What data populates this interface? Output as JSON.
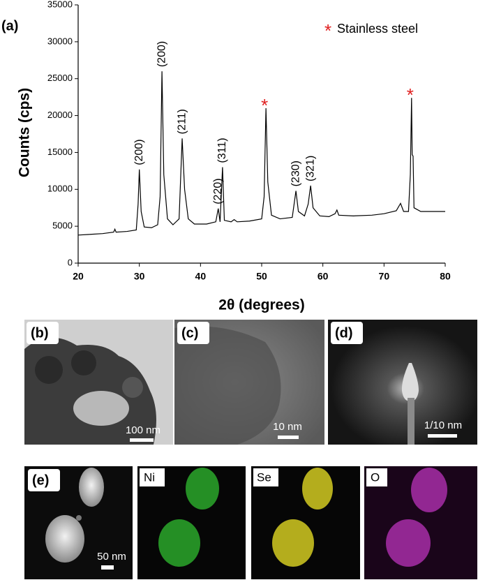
{
  "chart_data": {
    "type": "line",
    "panel_label": "(a)",
    "x_label": "2θ (degrees)",
    "y_label": "Counts (cps)",
    "xlim": [
      20,
      80
    ],
    "xticks": [
      20,
      30,
      40,
      50,
      60,
      70,
      80
    ],
    "ylim": [
      0,
      35000
    ],
    "yticks": [
      0,
      5000,
      10000,
      15000,
      20000,
      25000,
      30000,
      35000
    ],
    "color": "#000000",
    "x": [
      20,
      22,
      24,
      25.8,
      26,
      26.2,
      28,
      29.5,
      29.8,
      30,
      30.3,
      30.8,
      32,
      33,
      33.4,
      33.7,
      34,
      34.6,
      35.5,
      36.5,
      37,
      37.4,
      38,
      39,
      41,
      42.5,
      42.9,
      43.2,
      43.6,
      43.9,
      45,
      45.5,
      46,
      48,
      50,
      50.4,
      50.7,
      51,
      51.6,
      53,
      55,
      55.6,
      56,
      57,
      57.6,
      58,
      58.4,
      59.5,
      61,
      62,
      62.3,
      62.6,
      65,
      68,
      70,
      72,
      72.7,
      73.2,
      74,
      74.3,
      74.5,
      74.6,
      74.75,
      74.9,
      76,
      78,
      80
    ],
    "values": [
      3800,
      3900,
      4000,
      4200,
      4600,
      4200,
      4300,
      4500,
      8000,
      12700,
      7000,
      4900,
      4800,
      5200,
      9000,
      26000,
      12000,
      6000,
      5200,
      6000,
      16900,
      10000,
      6000,
      5300,
      5300,
      5600,
      7400,
      5600,
      13000,
      5800,
      5600,
      5900,
      5600,
      5700,
      6000,
      9000,
      21000,
      11000,
      6500,
      6000,
      6200,
      9800,
      7000,
      6400,
      8000,
      10500,
      7500,
      6400,
      6300,
      6700,
      7200,
      6500,
      6400,
      6500,
      6700,
      7100,
      8100,
      7000,
      7000,
      12000,
      22400,
      14700,
      14500,
      7500,
      7000,
      7000,
      7000
    ],
    "annotations": [
      {
        "text": "(200)",
        "x": 30
      },
      {
        "text": "(200)",
        "x": 33.7
      },
      {
        "text": "(211)",
        "x": 37
      },
      {
        "text": "(220)",
        "x": 42.9
      },
      {
        "text": "(311)",
        "x": 43.6
      },
      {
        "text": "*",
        "x": 50.7,
        "color": "#e02020"
      },
      {
        "text": "(230)",
        "x": 55.6
      },
      {
        "text": "(321)",
        "x": 58
      },
      {
        "text": "*",
        "x": 74.5,
        "color": "#e02020"
      }
    ],
    "legend": {
      "marker": "*",
      "label": "Stainless steel",
      "color": "#e02020"
    }
  },
  "panels": {
    "b": {
      "label": "(b)",
      "scale": "100 nm"
    },
    "c": {
      "label": "(c)",
      "scale": "10 nm"
    },
    "d": {
      "label": "(d)",
      "scale": "1/10 nm"
    },
    "e": {
      "label": "(e)",
      "scale": "50 nm"
    },
    "ni": {
      "label": "Ni"
    },
    "se": {
      "label": "Se"
    },
    "o": {
      "label": "O"
    }
  }
}
